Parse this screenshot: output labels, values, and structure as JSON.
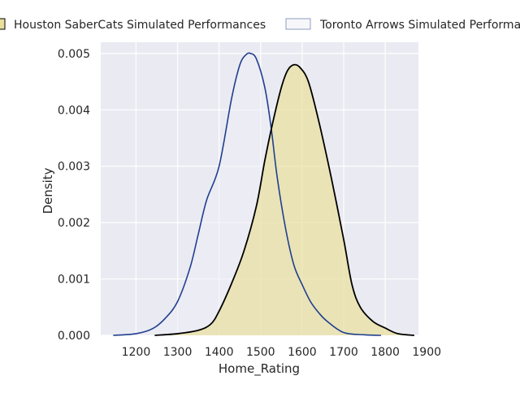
{
  "chart_data": {
    "type": "area",
    "title": "",
    "xlabel": "Home_Rating",
    "ylabel": "Density",
    "xlim": [
      1115,
      1880
    ],
    "ylim": [
      0,
      0.0052
    ],
    "xticks": [
      1200,
      1300,
      1400,
      1500,
      1600,
      1700,
      1800,
      1900
    ],
    "yticks": [
      0.0,
      0.001,
      0.002,
      0.003,
      0.004,
      0.005
    ],
    "ytick_labels": [
      "0.000",
      "0.001",
      "0.002",
      "0.003",
      "0.004",
      "0.005"
    ],
    "grid": true,
    "legend": {
      "placement": "top",
      "columns": 2
    },
    "series": [
      {
        "name": "Houston SaberCats Simulated Performances",
        "color": "#000000",
        "fill": "#e8df9c",
        "fill_opacity": 0.7,
        "x": [
          1245,
          1300,
          1350,
          1380,
          1400,
          1430,
          1460,
          1490,
          1510,
          1530,
          1550,
          1565,
          1580,
          1595,
          1615,
          1640,
          1670,
          1700,
          1720,
          1740,
          1770,
          1800,
          1830,
          1870
        ],
        "y": [
          0.0,
          3e-05,
          9e-05,
          0.0002,
          0.00043,
          0.00092,
          0.0015,
          0.0023,
          0.0031,
          0.0038,
          0.0044,
          0.0047,
          0.0048,
          0.00475,
          0.0045,
          0.0038,
          0.0028,
          0.0017,
          0.0009,
          0.0005,
          0.00025,
          0.00013,
          3e-05,
          0.0
        ]
      },
      {
        "name": "Toronto Arrows Simulated Performances",
        "color": "#1f3f8f",
        "fill": "#ececf5",
        "fill_opacity": 0.55,
        "x": [
          1145,
          1200,
          1240,
          1270,
          1300,
          1330,
          1350,
          1370,
          1400,
          1430,
          1450,
          1465,
          1476,
          1490,
          1510,
          1525,
          1540,
          1560,
          1580,
          1600,
          1620,
          1640,
          1660,
          1700,
          1750,
          1790
        ],
        "y": [
          0.0,
          3e-05,
          0.00012,
          0.0003,
          0.0006,
          0.0012,
          0.0018,
          0.0024,
          0.003,
          0.0042,
          0.0048,
          0.00498,
          0.005,
          0.0049,
          0.0044,
          0.0037,
          0.0028,
          0.0019,
          0.00125,
          0.0009,
          0.0006,
          0.0004,
          0.00025,
          5e-05,
          1e-05,
          0.0
        ]
      }
    ]
  }
}
